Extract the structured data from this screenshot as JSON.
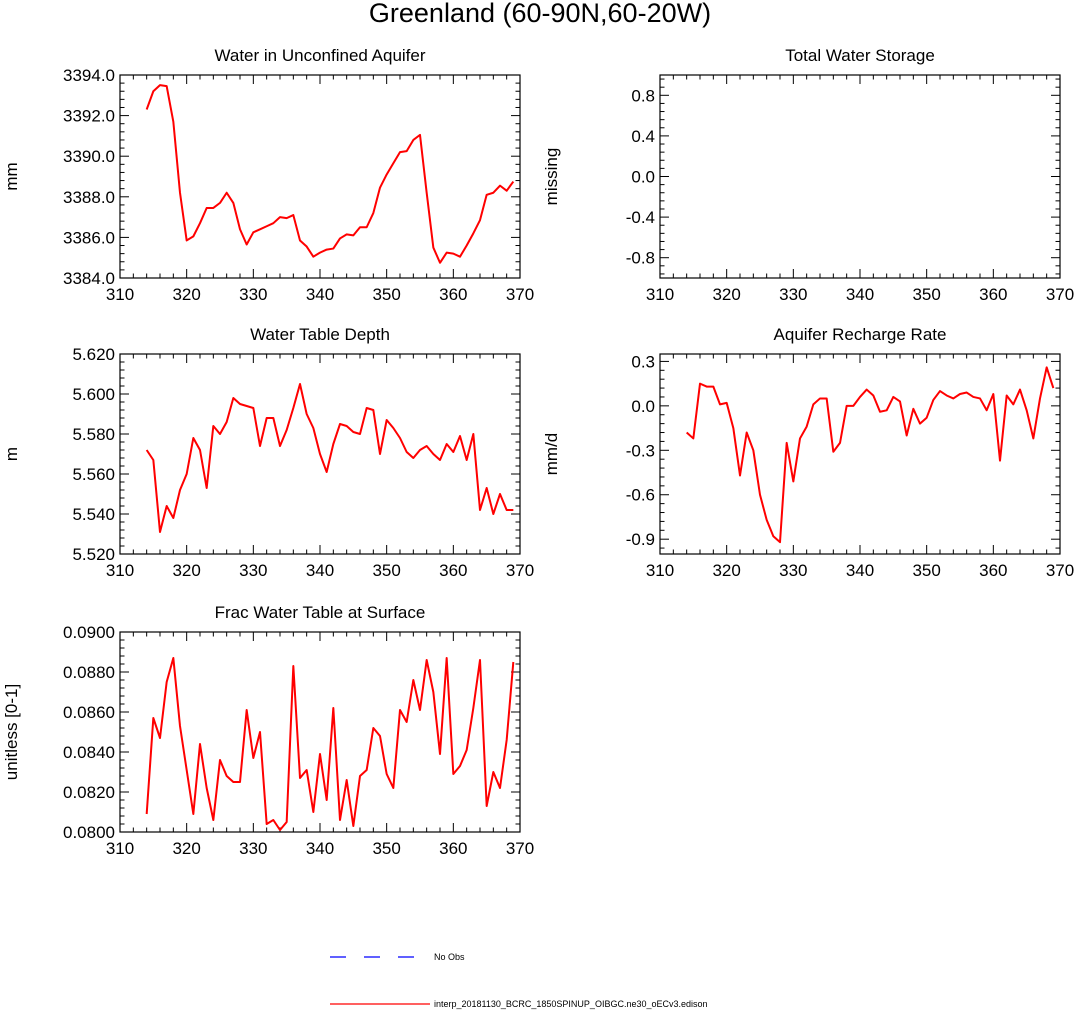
{
  "figure_title": "Greenland (60-90N,60-20W)",
  "legend": {
    "entries": [
      {
        "label": "No Obs",
        "style": "dashed",
        "color": "#0000ff"
      },
      {
        "label": "interp_20181130_BCRC_1850SPINUP_OIBGC.ne30_oECv3.edison",
        "style": "solid",
        "color": "#ff0000"
      }
    ]
  },
  "colors": {
    "series": "#ff0000",
    "axes": "#000000"
  },
  "chart_data": [
    {
      "type": "line",
      "title": "Water in Unconfined Aquifer",
      "xlabel": "",
      "ylabel": "mm",
      "xlim": [
        310,
        370
      ],
      "ylim": [
        3384.0,
        3394.0
      ],
      "xticks": [
        310,
        320,
        330,
        340,
        350,
        360,
        370
      ],
      "yticks": [
        3384.0,
        3386.0,
        3388.0,
        3390.0,
        3392.0,
        3394.0
      ],
      "yticklabels": [
        "3384.0",
        "3386.0",
        "3388.0",
        "3390.0",
        "3392.0",
        "3394.0"
      ],
      "x": [
        314,
        315,
        316,
        317,
        318,
        319,
        320,
        321,
        322,
        323,
        324,
        325,
        326,
        327,
        328,
        329,
        330,
        331,
        332,
        333,
        334,
        335,
        336,
        337,
        338,
        339,
        340,
        341,
        342,
        343,
        344,
        345,
        346,
        347,
        348,
        349,
        350,
        351,
        352,
        353,
        354,
        355,
        356,
        357,
        358,
        359,
        360,
        361,
        362,
        363,
        364,
        365,
        366,
        367,
        368,
        369
      ],
      "series": [
        {
          "name": "interp_20181130_BCRC_1850SPINUP_OIBGC.ne30_oECv3.edison",
          "color": "#ff0000",
          "values": [
            3392.3,
            3393.2,
            3393.5,
            3393.45,
            3391.7,
            3388.2,
            3385.85,
            3386.05,
            3386.7,
            3387.45,
            3387.45,
            3387.7,
            3388.2,
            3387.7,
            3386.4,
            3385.65,
            3386.25,
            3386.4,
            3386.55,
            3386.7,
            3387.0,
            3386.95,
            3387.1,
            3385.85,
            3385.55,
            3385.05,
            3385.25,
            3385.4,
            3385.45,
            3385.95,
            3386.15,
            3386.1,
            3386.5,
            3386.5,
            3387.2,
            3388.45,
            3389.1,
            3389.65,
            3390.2,
            3390.25,
            3390.8,
            3391.05,
            3388.2,
            3385.5,
            3384.75,
            3385.25,
            3385.2,
            3385.05,
            3385.6,
            3386.2,
            3386.85,
            3388.1,
            3388.2,
            3388.55,
            3388.3,
            3388.75
          ]
        }
      ]
    },
    {
      "type": "line",
      "title": "Total Water Storage",
      "xlabel": "",
      "ylabel": "missing",
      "xlim": [
        310,
        370
      ],
      "ylim": [
        -1.0,
        1.0
      ],
      "xticks": [
        310,
        320,
        330,
        340,
        350,
        360,
        370
      ],
      "yticks": [
        -0.8,
        -0.4,
        0.0,
        0.4,
        0.8
      ],
      "yticklabels": [
        "-0.8",
        "-0.4",
        "0.0",
        "0.4",
        "0.8"
      ],
      "x": [],
      "series": []
    },
    {
      "type": "line",
      "title": "Water Table Depth",
      "xlabel": "",
      "ylabel": "m",
      "xlim": [
        310,
        370
      ],
      "ylim": [
        5.52,
        5.62
      ],
      "xticks": [
        310,
        320,
        330,
        340,
        350,
        360,
        370
      ],
      "yticks": [
        5.52,
        5.54,
        5.56,
        5.58,
        5.6,
        5.62
      ],
      "yticklabels": [
        "5.520",
        "5.540",
        "5.560",
        "5.580",
        "5.600",
        "5.620"
      ],
      "x": [
        314,
        315,
        316,
        317,
        318,
        319,
        320,
        321,
        322,
        323,
        324,
        325,
        326,
        327,
        328,
        329,
        330,
        331,
        332,
        333,
        334,
        335,
        336,
        337,
        338,
        339,
        340,
        341,
        342,
        343,
        344,
        345,
        346,
        347,
        348,
        349,
        350,
        351,
        352,
        353,
        354,
        355,
        356,
        357,
        358,
        359,
        360,
        361,
        362,
        363,
        364,
        365,
        366,
        367,
        368,
        369
      ],
      "series": [
        {
          "name": "interp_20181130_BCRC_1850SPINUP_OIBGC.ne30_oECv3.edison",
          "color": "#ff0000",
          "values": [
            5.572,
            5.567,
            5.531,
            5.544,
            5.538,
            5.552,
            5.56,
            5.578,
            5.572,
            5.553,
            5.584,
            5.58,
            5.586,
            5.598,
            5.595,
            5.594,
            5.593,
            5.574,
            5.588,
            5.588,
            5.574,
            5.582,
            5.593,
            5.605,
            5.59,
            5.583,
            5.57,
            5.561,
            5.575,
            5.585,
            5.584,
            5.581,
            5.58,
            5.593,
            5.592,
            5.57,
            5.587,
            5.583,
            5.578,
            5.571,
            5.568,
            5.572,
            5.574,
            5.57,
            5.567,
            5.575,
            5.571,
            5.579,
            5.567,
            5.58,
            5.542,
            5.553,
            5.54,
            5.55,
            5.542,
            5.542
          ]
        }
      ]
    },
    {
      "type": "line",
      "title": "Aquifer Recharge Rate",
      "xlabel": "",
      "ylabel": "mm/d",
      "xlim": [
        310,
        370
      ],
      "ylim": [
        -1.0,
        0.35
      ],
      "xticks": [
        310,
        320,
        330,
        340,
        350,
        360,
        370
      ],
      "yticks": [
        -0.9,
        -0.6,
        -0.3,
        0.0,
        0.3
      ],
      "yticklabels": [
        "-0.9",
        "-0.6",
        "-0.3",
        "0.0",
        "0.3"
      ],
      "x": [
        314,
        315,
        316,
        317,
        318,
        319,
        320,
        321,
        322,
        323,
        324,
        325,
        326,
        327,
        328,
        329,
        330,
        331,
        332,
        333,
        334,
        335,
        336,
        337,
        338,
        339,
        340,
        341,
        342,
        343,
        344,
        345,
        346,
        347,
        348,
        349,
        350,
        351,
        352,
        353,
        354,
        355,
        356,
        357,
        358,
        359,
        360,
        361,
        362,
        363,
        364,
        365,
        366,
        367,
        368,
        369
      ],
      "series": [
        {
          "name": "interp_20181130_BCRC_1850SPINUP_OIBGC.ne30_oECv3.edison",
          "color": "#ff0000",
          "values": [
            -0.18,
            -0.22,
            0.15,
            0.13,
            0.13,
            0.01,
            0.02,
            -0.15,
            -0.47,
            -0.18,
            -0.3,
            -0.6,
            -0.77,
            -0.88,
            -0.92,
            -0.25,
            -0.51,
            -0.22,
            -0.14,
            0.01,
            0.05,
            0.05,
            -0.31,
            -0.25,
            0.0,
            0.0,
            0.06,
            0.11,
            0.07,
            -0.04,
            -0.03,
            0.06,
            0.03,
            -0.2,
            -0.02,
            -0.12,
            -0.08,
            0.04,
            0.1,
            0.07,
            0.05,
            0.08,
            0.09,
            0.06,
            0.05,
            -0.03,
            0.08,
            -0.37,
            0.07,
            0.01,
            0.11,
            -0.03,
            -0.22,
            0.05,
            0.26,
            0.12
          ]
        }
      ]
    },
    {
      "type": "line",
      "title": "Frac Water Table at Surface",
      "xlabel": "",
      "ylabel": "unitless [0-1]",
      "xlim": [
        310,
        370
      ],
      "ylim": [
        0.08,
        0.09
      ],
      "xticks": [
        310,
        320,
        330,
        340,
        350,
        360,
        370
      ],
      "yticks": [
        0.08,
        0.082,
        0.084,
        0.086,
        0.088,
        0.09
      ],
      "yticklabels": [
        "0.0800",
        "0.0820",
        "0.0840",
        "0.0860",
        "0.0880",
        "0.0900"
      ],
      "x": [
        314,
        315,
        316,
        317,
        318,
        319,
        320,
        321,
        322,
        323,
        324,
        325,
        326,
        327,
        328,
        329,
        330,
        331,
        332,
        333,
        334,
        335,
        336,
        337,
        338,
        339,
        340,
        341,
        342,
        343,
        344,
        345,
        346,
        347,
        348,
        349,
        350,
        351,
        352,
        353,
        354,
        355,
        356,
        357,
        358,
        359,
        360,
        361,
        362,
        363,
        364,
        365,
        366,
        367,
        368,
        369
      ],
      "series": [
        {
          "name": "interp_20181130_BCRC_1850SPINUP_OIBGC.ne30_oECv3.edison",
          "color": "#ff0000",
          "values": [
            0.0809,
            0.0857,
            0.0847,
            0.0875,
            0.0887,
            0.0853,
            0.0831,
            0.0809,
            0.0844,
            0.0822,
            0.0806,
            0.0836,
            0.0828,
            0.0825,
            0.0825,
            0.0861,
            0.0837,
            0.085,
            0.0804,
            0.0806,
            0.0801,
            0.0805,
            0.0883,
            0.0827,
            0.0831,
            0.081,
            0.0839,
            0.0816,
            0.0862,
            0.0806,
            0.0826,
            0.0803,
            0.0828,
            0.0831,
            0.0852,
            0.0848,
            0.0829,
            0.0822,
            0.0861,
            0.0855,
            0.0876,
            0.0861,
            0.0886,
            0.087,
            0.0839,
            0.0887,
            0.0829,
            0.0833,
            0.0841,
            0.0862,
            0.0886,
            0.0813,
            0.083,
            0.0822,
            0.0846,
            0.0885
          ]
        }
      ]
    }
  ]
}
